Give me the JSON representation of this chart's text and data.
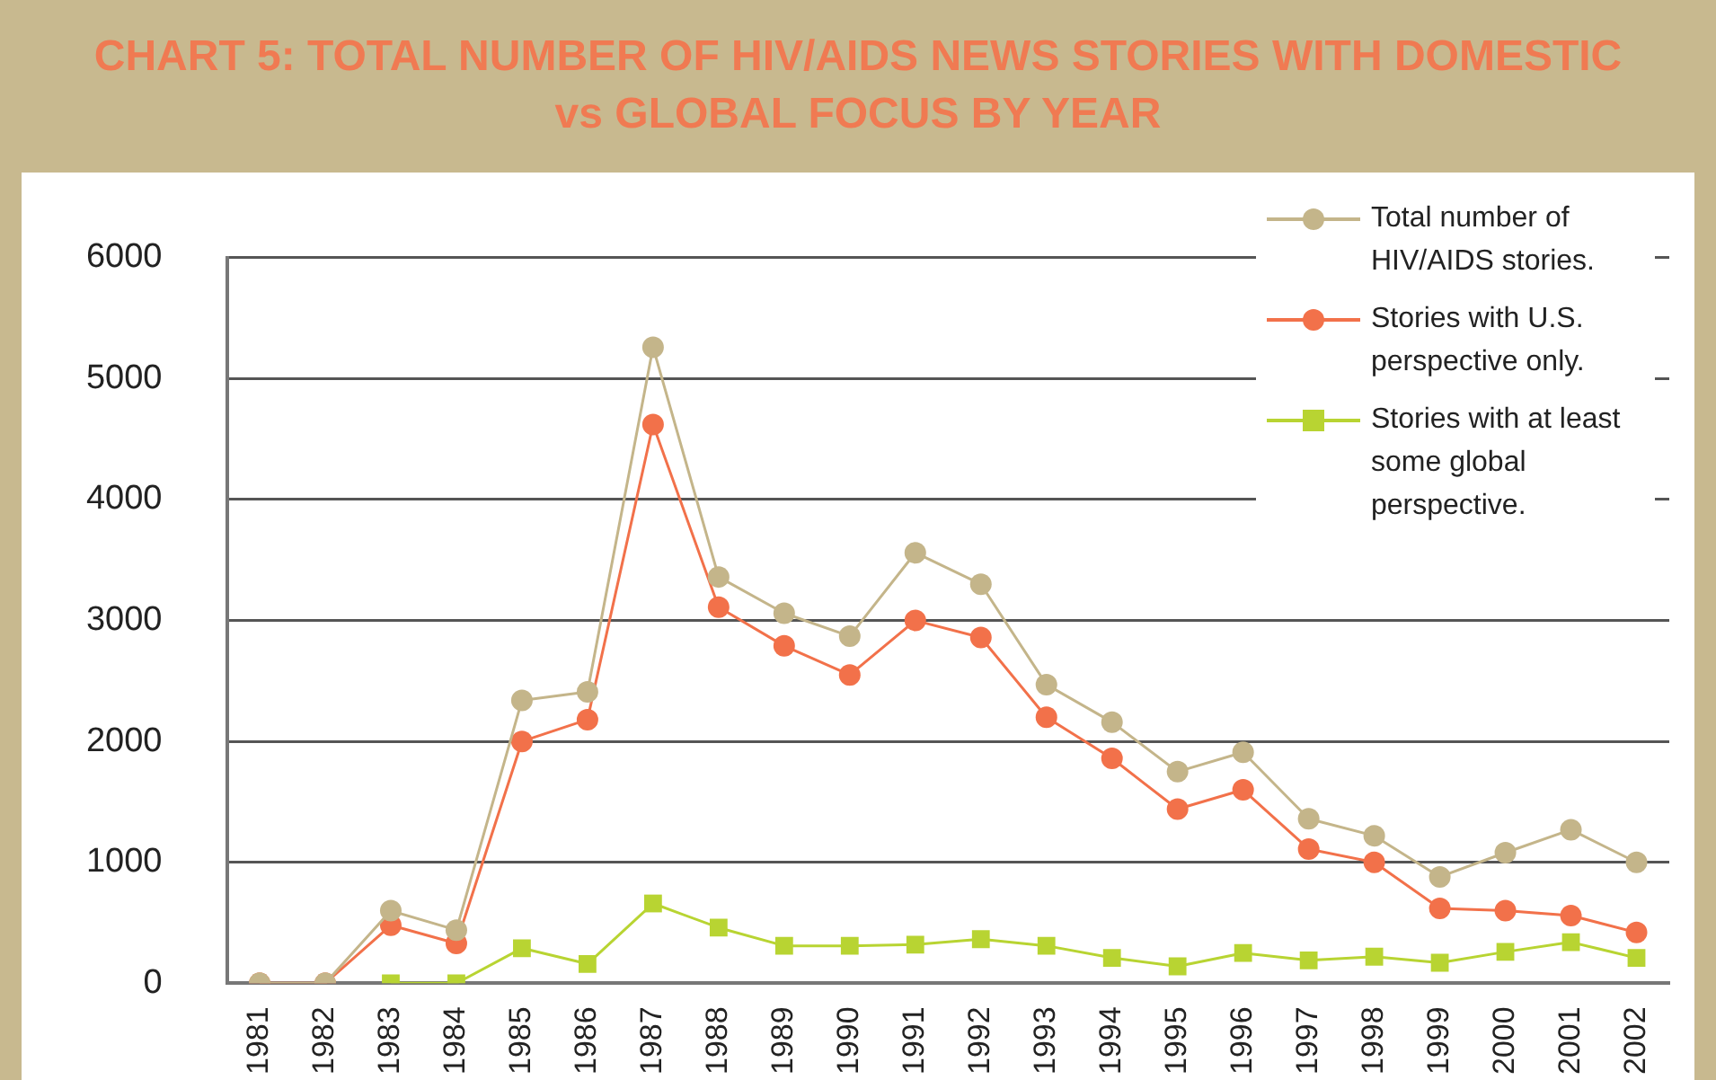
{
  "chart_data": {
    "type": "line",
    "title": "CHART 5: TOTAL NUMBER OF HIV/AIDS NEWS STORIES WITH DOMESTIC vs GLOBAL FOCUS BY YEAR",
    "categories": [
      "1981",
      "1982",
      "1983",
      "1984",
      "1985",
      "1986",
      "1987",
      "1988",
      "1989",
      "1990",
      "1991",
      "1992",
      "1993",
      "1994",
      "1995",
      "1996",
      "1997",
      "1998",
      "1999",
      "2000",
      "2001",
      "2002"
    ],
    "series": [
      {
        "name": "Total number of HIV/AIDS stories.",
        "color": "#c4b58a",
        "marker": "circle",
        "values": [
          0,
          0,
          600,
          440,
          2340,
          2410,
          5260,
          3360,
          3060,
          2870,
          3560,
          3300,
          2470,
          2160,
          1750,
          1910,
          1360,
          1220,
          880,
          1080,
          1270,
          1000
        ]
      },
      {
        "name": "Stories with U.S. perspective only.",
        "color": "#f2714a",
        "marker": "circle",
        "values": [
          0,
          0,
          480,
          330,
          2000,
          2180,
          4620,
          3110,
          2790,
          2550,
          3000,
          2860,
          2200,
          1860,
          1440,
          1600,
          1110,
          1000,
          620,
          600,
          560,
          420
        ]
      },
      {
        "name": "Stories with at least some global perspective.",
        "color": "#b8d432",
        "marker": "square",
        "values": [
          null,
          null,
          0,
          0,
          290,
          160,
          660,
          460,
          310,
          310,
          320,
          365,
          310,
          210,
          140,
          250,
          190,
          220,
          170,
          260,
          340,
          210
        ]
      }
    ],
    "ylim": [
      0,
      6000
    ],
    "yticks": [
      0,
      1000,
      2000,
      3000,
      4000,
      5000,
      6000
    ],
    "grid": "y",
    "legend": "top right",
    "line_style": "solid"
  }
}
